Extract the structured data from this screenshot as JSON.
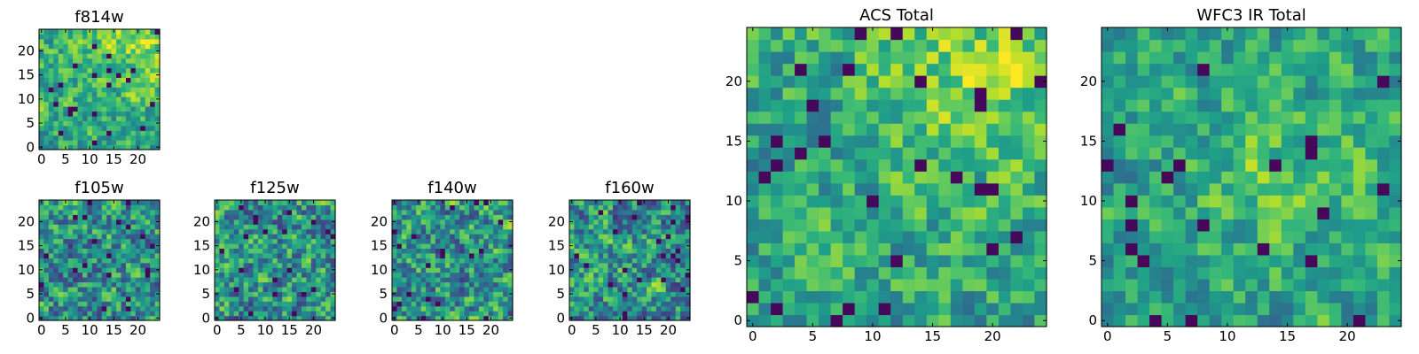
{
  "chart_data": [
    {
      "type": "heatmap",
      "id": "f814w",
      "title": "f814w",
      "colormap": "viridis",
      "grid_size": [
        25,
        25
      ],
      "xlim": [
        0,
        24
      ],
      "ylim": [
        0,
        24
      ],
      "xticks": [
        0,
        5,
        10,
        15,
        20
      ],
      "yticks": [
        0,
        5,
        10,
        15,
        20
      ],
      "seed": 11,
      "bright_region": "upper-right",
      "values": "25x25 noisy intensity field, mostly mid-high (green/yellow) with scattered low (dark) pixels"
    },
    {
      "type": "heatmap",
      "id": "f105w",
      "title": "f105w",
      "colormap": "viridis",
      "grid_size": [
        25,
        25
      ],
      "xlim": [
        0,
        24
      ],
      "ylim": [
        0,
        24
      ],
      "xticks": [
        0,
        5,
        10,
        15,
        20
      ],
      "yticks": [
        0,
        5,
        10,
        15,
        20
      ],
      "seed": 23,
      "bright_region": "none",
      "values": "25x25 smooth-ish noise field"
    },
    {
      "type": "heatmap",
      "id": "f125w",
      "title": "f125w",
      "colormap": "viridis",
      "grid_size": [
        25,
        25
      ],
      "xlim": [
        0,
        24
      ],
      "ylim": [
        0,
        24
      ],
      "xticks": [
        0,
        5,
        10,
        15,
        20
      ],
      "yticks": [
        0,
        5,
        10,
        15,
        20
      ],
      "seed": 37,
      "bright_region": "none",
      "values": "25x25 smooth-ish noise field"
    },
    {
      "type": "heatmap",
      "id": "f140w",
      "title": "f140w",
      "colormap": "viridis",
      "grid_size": [
        25,
        25
      ],
      "xlim": [
        0,
        24
      ],
      "ylim": [
        0,
        24
      ],
      "xticks": [
        0,
        5,
        10,
        15,
        20
      ],
      "yticks": [
        0,
        5,
        10,
        15,
        20
      ],
      "seed": 41,
      "bright_region": "none",
      "values": "25x25 smooth-ish noise field"
    },
    {
      "type": "heatmap",
      "id": "f160w",
      "title": "f160w",
      "colormap": "viridis",
      "grid_size": [
        25,
        25
      ],
      "xlim": [
        0,
        24
      ],
      "ylim": [
        0,
        24
      ],
      "xticks": [
        0,
        5,
        10,
        15,
        20
      ],
      "yticks": [
        0,
        5,
        10,
        15,
        20
      ],
      "seed": 53,
      "bright_region": "none",
      "values": "25x25 smooth-ish noise field"
    },
    {
      "type": "heatmap",
      "id": "acs-total",
      "title": "ACS Total",
      "colormap": "viridis",
      "grid_size": [
        25,
        25
      ],
      "xlim": [
        0,
        24
      ],
      "ylim": [
        0,
        24
      ],
      "xticks": [
        0,
        5,
        10,
        15,
        20
      ],
      "yticks": [
        0,
        5,
        10,
        15,
        20
      ],
      "seed": 67,
      "bright_region": "upper-right",
      "values": "25x25 mostly green/yellow field with a bright yellow patch at upper right and sparse dark pixels"
    },
    {
      "type": "heatmap",
      "id": "wfc3-ir-total",
      "title": "WFC3 IR Total",
      "colormap": "viridis",
      "grid_size": [
        25,
        25
      ],
      "xlim": [
        0,
        24
      ],
      "ylim": [
        0,
        24
      ],
      "xticks": [
        0,
        5,
        10,
        15,
        20
      ],
      "yticks": [
        0,
        5,
        10,
        15,
        20
      ],
      "seed": 79,
      "bright_region": "center",
      "values": "25x25 mostly green field with a brighter patch near the center and sparse dark pixels"
    }
  ]
}
